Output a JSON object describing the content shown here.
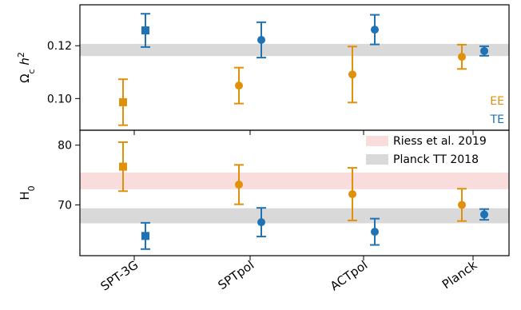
{
  "chart_data": [
    {
      "type": "scatter",
      "ylabel": "Ω_c h²",
      "ylim": [
        0.088,
        0.1355
      ],
      "yticks": [
        0.1,
        0.12
      ],
      "ytick_labels": [
        "0.10",
        "0.12"
      ],
      "grid": false,
      "categories": [
        "SPT-3G",
        "SPTpol",
        "ACTpol",
        "Planck"
      ],
      "bands": [
        {
          "name": "Planck TT 2018",
          "low": 0.1161,
          "high": 0.1207,
          "color": "#d9d9d9"
        }
      ],
      "series": [
        {
          "name": "EE",
          "color": "#e1900a",
          "points": [
            {
              "category": "SPT-3G",
              "y": 0.0986,
              "err": 0.0087,
              "marker": "square"
            },
            {
              "category": "SPTpol",
              "y": 0.1049,
              "err": 0.0068,
              "marker": "circle"
            },
            {
              "category": "ACTpol",
              "y": 0.1091,
              "err": 0.0106,
              "marker": "circle"
            },
            {
              "category": "Planck",
              "y": 0.1158,
              "err": 0.0046,
              "marker": "circle"
            }
          ]
        },
        {
          "name": "TE",
          "color": "#1f72b4",
          "points": [
            {
              "category": "SPT-3G",
              "y": 0.1258,
              "err": 0.0063,
              "marker": "square"
            },
            {
              "category": "SPTpol",
              "y": 0.1222,
              "err": 0.0067,
              "marker": "circle"
            },
            {
              "category": "ACTpol",
              "y": 0.1261,
              "err": 0.0056,
              "marker": "circle"
            },
            {
              "category": "Planck",
              "y": 0.118,
              "err": 0.0018,
              "marker": "circle"
            }
          ]
        }
      ],
      "legend": {
        "placement": "bottom-right",
        "style": "text-only",
        "items": [
          "EE",
          "TE"
        ]
      }
    },
    {
      "type": "scatter",
      "ylabel": "H₀",
      "ylim": [
        61.5,
        82.5
      ],
      "yticks": [
        70,
        80
      ],
      "ytick_labels": [
        "70",
        "80"
      ],
      "grid": false,
      "categories": [
        "SPT-3G",
        "SPTpol",
        "ACTpol",
        "Planck"
      ],
      "bands": [
        {
          "name": "Riess et al. 2019",
          "low": 72.62,
          "high": 75.42,
          "color": "#f9dcdc"
        },
        {
          "name": "Planck TT 2018",
          "low": 66.92,
          "high": 69.44,
          "color": "#d9d9d9"
        }
      ],
      "series": [
        {
          "name": "EE",
          "color": "#e1900a",
          "points": [
            {
              "category": "SPT-3G",
              "y": 76.4,
              "err": 4.1,
              "marker": "square"
            },
            {
              "category": "SPTpol",
              "y": 73.4,
              "err": 3.3,
              "marker": "circle"
            },
            {
              "category": "ACTpol",
              "y": 71.8,
              "err": 4.4,
              "marker": "circle"
            },
            {
              "category": "Planck",
              "y": 70.0,
              "err": 2.7,
              "marker": "circle"
            }
          ]
        },
        {
          "name": "TE",
          "color": "#1f72b4",
          "points": [
            {
              "category": "SPT-3G",
              "y": 64.8,
              "err": 2.2,
              "marker": "square"
            },
            {
              "category": "SPTpol",
              "y": 67.1,
              "err": 2.4,
              "marker": "circle"
            },
            {
              "category": "ACTpol",
              "y": 65.5,
              "err": 2.2,
              "marker": "circle"
            },
            {
              "category": "Planck",
              "y": 68.4,
              "err": 0.9,
              "marker": "circle"
            }
          ]
        }
      ],
      "legend": {
        "placement": "top-right",
        "style": "patches",
        "items": [
          "Riess et al. 2019",
          "Planck TT 2018"
        ]
      }
    }
  ]
}
